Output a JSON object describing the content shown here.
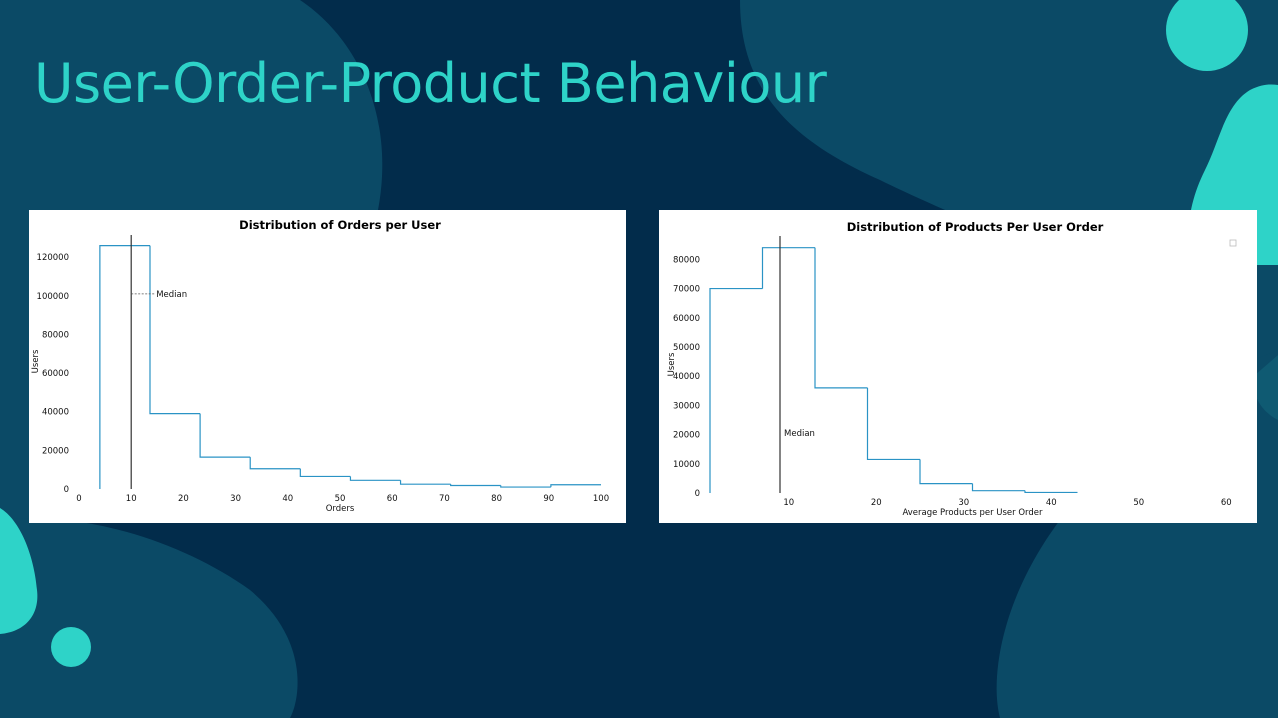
{
  "slide": {
    "title": "User-Order-Product Behaviour",
    "colors": {
      "background": "#022c4b",
      "blob_dark": "#0b4a66",
      "accent_teal": "#2ed3c8",
      "series_line": "#2a93c5",
      "median_line": "#333333"
    }
  },
  "chart_data": [
    {
      "type": "histogram-step",
      "title": "Distribution of Orders per User",
      "xlabel": "Orders",
      "ylabel": "Users",
      "xlim": [
        0,
        100
      ],
      "ylim": [
        0,
        132000
      ],
      "xticks": [
        0,
        10,
        20,
        30,
        40,
        50,
        60,
        70,
        80,
        90,
        100
      ],
      "yticks": [
        0,
        20000,
        40000,
        60000,
        80000,
        100000,
        120000
      ],
      "bins": [
        {
          "x0": 4,
          "x1": 13.6,
          "y": 126000
        },
        {
          "x0": 13.6,
          "x1": 23.2,
          "y": 39000
        },
        {
          "x0": 23.2,
          "x1": 32.8,
          "y": 16500
        },
        {
          "x0": 32.8,
          "x1": 42.4,
          "y": 10500
        },
        {
          "x0": 42.4,
          "x1": 52,
          "y": 6500
        },
        {
          "x0": 52,
          "x1": 61.6,
          "y": 4500
        },
        {
          "x0": 61.6,
          "x1": 71.2,
          "y": 2500
        },
        {
          "x0": 71.2,
          "x1": 80.8,
          "y": 1800
        },
        {
          "x0": 80.8,
          "x1": 90.4,
          "y": 1000
        },
        {
          "x0": 90.4,
          "x1": 100,
          "y": 2200
        }
      ],
      "median": 10,
      "median_label": "Median",
      "median_label_y": 101000,
      "grid": false,
      "legend": "none"
    },
    {
      "type": "histogram-step",
      "title": "Distribution of Products Per User Order",
      "xlabel": "Average Products per User Order",
      "ylabel": "Users",
      "xlim": [
        1,
        61
      ],
      "ylim": [
        0,
        88000
      ],
      "xticks": [
        10,
        20,
        30,
        40,
        50,
        60
      ],
      "yticks": [
        0,
        10000,
        20000,
        30000,
        40000,
        50000,
        60000,
        70000,
        80000
      ],
      "bins": [
        {
          "x0": 1,
          "x1": 7,
          "y": 70000
        },
        {
          "x0": 7,
          "x1": 13,
          "y": 84000
        },
        {
          "x0": 13,
          "x1": 19,
          "y": 36000
        },
        {
          "x0": 19,
          "x1": 25,
          "y": 11500
        },
        {
          "x0": 25,
          "x1": 31,
          "y": 3200
        },
        {
          "x0": 31,
          "x1": 37,
          "y": 800
        },
        {
          "x0": 37,
          "x1": 43,
          "y": 200
        }
      ],
      "median": 9,
      "median_label": "Median",
      "median_label_y": 20500,
      "grid": false,
      "legend": "top-right (empty)"
    }
  ]
}
